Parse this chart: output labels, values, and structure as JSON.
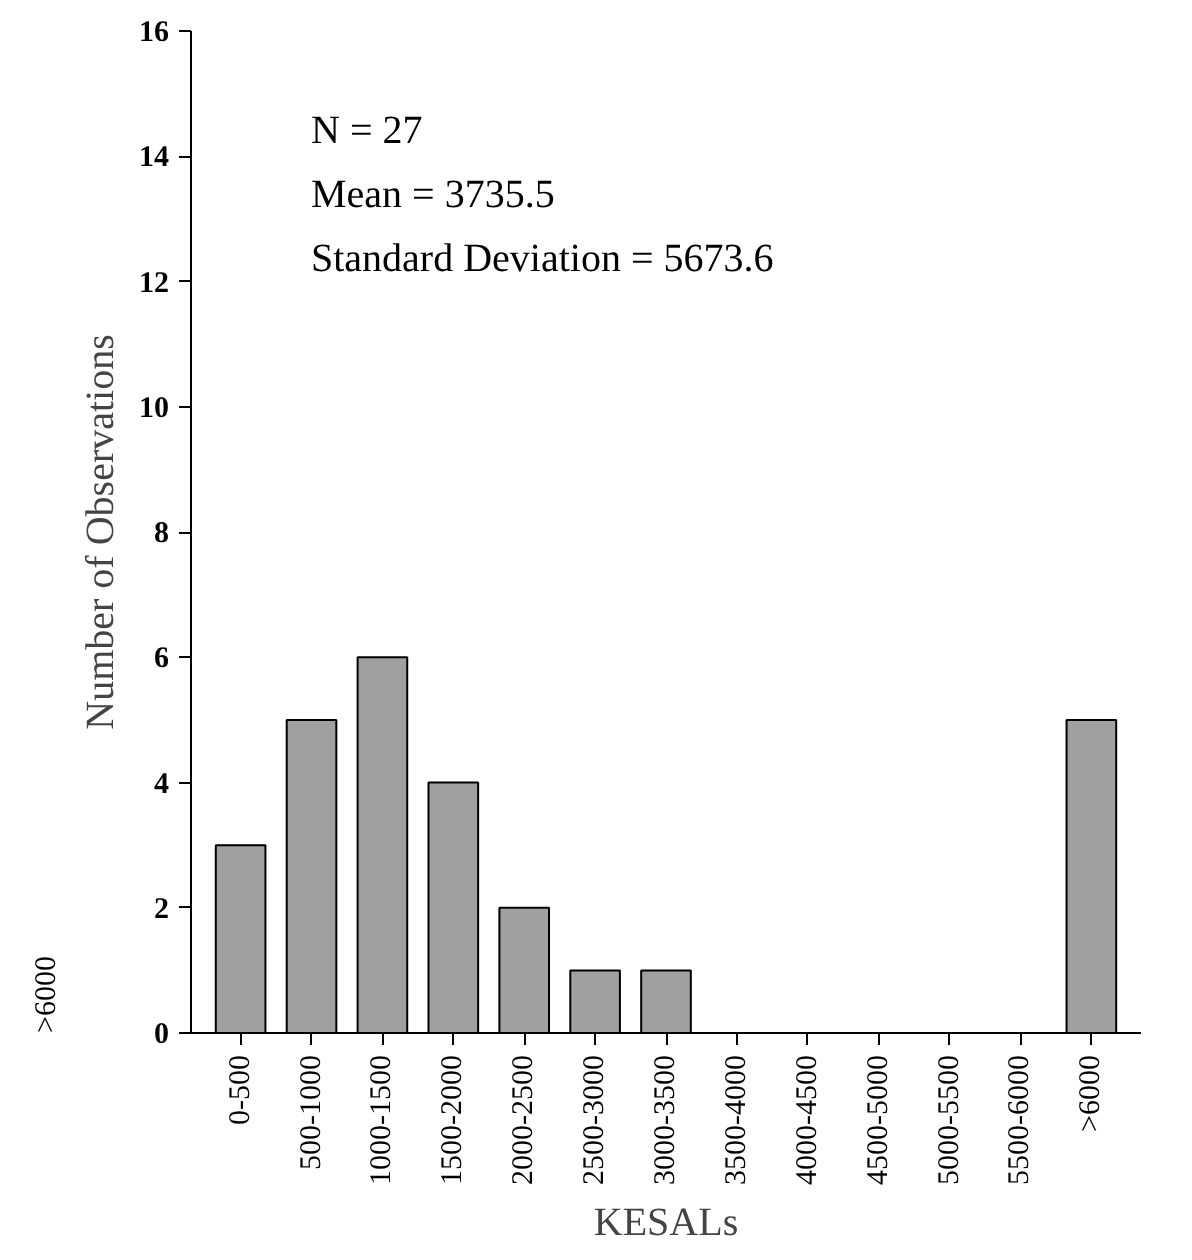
{
  "chart_data": {
    "type": "bar",
    "xlabel": "KESALs",
    "ylabel": "Number of Observations",
    "categories": [
      "0-500",
      "500-1000",
      "1000-1500",
      "1500-2000",
      "2000-2500",
      "2500-3000",
      "3000-3500",
      "3500-4000",
      "4000-4500",
      "4500-5000",
      "5000-5500",
      "5500-6000",
      ">6000"
    ],
    "values": [
      3,
      5,
      6,
      4,
      2,
      1,
      1,
      0,
      0,
      0,
      0,
      0,
      5
    ],
    "color": "#a0a0a0",
    "ylim": [
      0,
      16
    ],
    "yticks": [
      0,
      2,
      4,
      6,
      8,
      10,
      12,
      14,
      16
    ],
    "grid": false,
    "annotations": [
      "N = 27",
      "Mean = 3735.5",
      "Standard Deviation = 5673.6",
      ">6000"
    ]
  }
}
